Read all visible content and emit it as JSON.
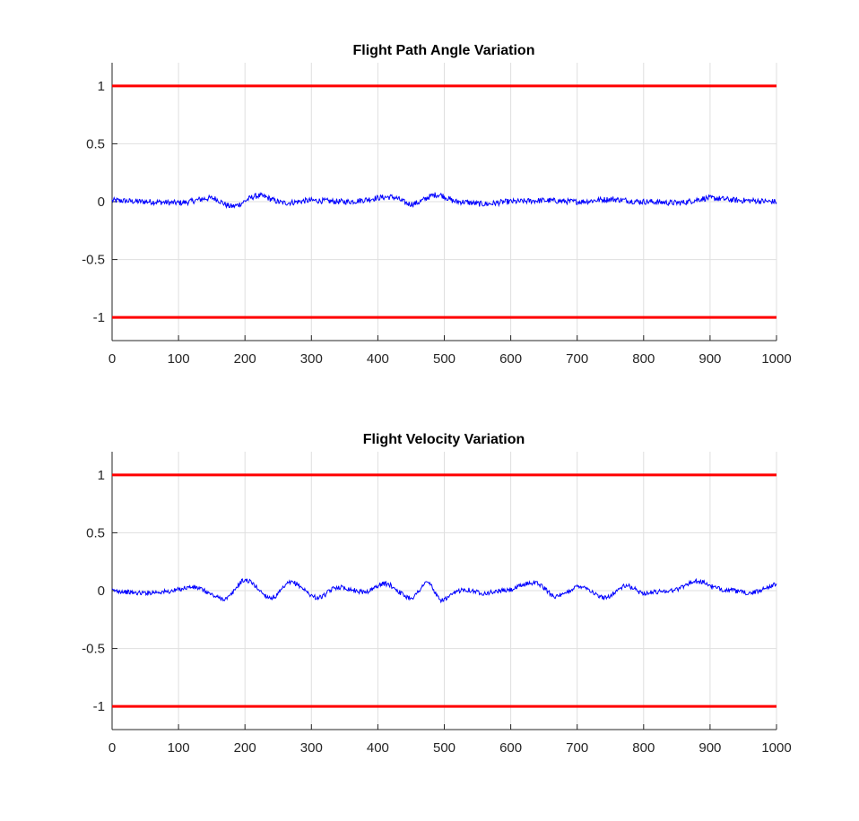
{
  "colors": {
    "signal": "#0000ff",
    "limit": "#ff0000",
    "grid": "#dfdfdf",
    "axis": "#262626"
  },
  "chart_data": [
    {
      "type": "line",
      "title": "Flight Path Angle Variation",
      "xlabel": "",
      "ylabel": "",
      "xlim": [
        0,
        1000
      ],
      "ylim": [
        -1.2,
        1.2
      ],
      "xticks": [
        0,
        100,
        200,
        300,
        400,
        500,
        600,
        700,
        800,
        900,
        1000
      ],
      "yticks": [
        -1,
        -0.5,
        0,
        0.5,
        1
      ],
      "grid": true,
      "noise_amplitude": 0.025,
      "limit_lines": [
        1,
        -1
      ],
      "series": [
        {
          "color": "#0000ff",
          "x": [
            0,
            50,
            100,
            150,
            180,
            220,
            260,
            300,
            350,
            420,
            450,
            490,
            520,
            560,
            600,
            650,
            700,
            750,
            800,
            850,
            900,
            950,
            1000
          ],
          "y": [
            0.01,
            0.0,
            -0.01,
            0.03,
            -0.04,
            0.05,
            -0.01,
            0.01,
            0.0,
            0.04,
            -0.02,
            0.06,
            0.0,
            -0.02,
            0.0,
            0.01,
            0.0,
            0.02,
            0.0,
            -0.01,
            0.03,
            0.01,
            0.0
          ]
        }
      ]
    },
    {
      "type": "line",
      "title": "Flight Velocity Variation",
      "xlabel": "",
      "ylabel": "",
      "xlim": [
        0,
        1000
      ],
      "ylim": [
        -1.2,
        1.2
      ],
      "xticks": [
        0,
        100,
        200,
        300,
        400,
        500,
        600,
        700,
        800,
        900,
        1000
      ],
      "yticks": [
        -1,
        -0.5,
        0,
        0.5,
        1
      ],
      "grid": true,
      "noise_amplitude": 0.02,
      "limit_lines": [
        1,
        -1
      ],
      "series": [
        {
          "color": "#0000ff",
          "x": [
            0,
            40,
            80,
            120,
            170,
            200,
            240,
            270,
            310,
            340,
            380,
            410,
            450,
            475,
            495,
            530,
            560,
            590,
            635,
            670,
            705,
            740,
            775,
            800,
            840,
            880,
            920,
            960,
            1000
          ],
          "y": [
            0.0,
            -0.02,
            -0.01,
            0.03,
            -0.07,
            0.09,
            -0.06,
            0.07,
            -0.06,
            0.03,
            -0.01,
            0.06,
            -0.06,
            0.07,
            -0.08,
            0.01,
            -0.02,
            0.0,
            0.07,
            -0.05,
            0.04,
            -0.06,
            0.04,
            -0.02,
            0.0,
            0.08,
            0.01,
            -0.02,
            0.05
          ]
        }
      ]
    }
  ]
}
